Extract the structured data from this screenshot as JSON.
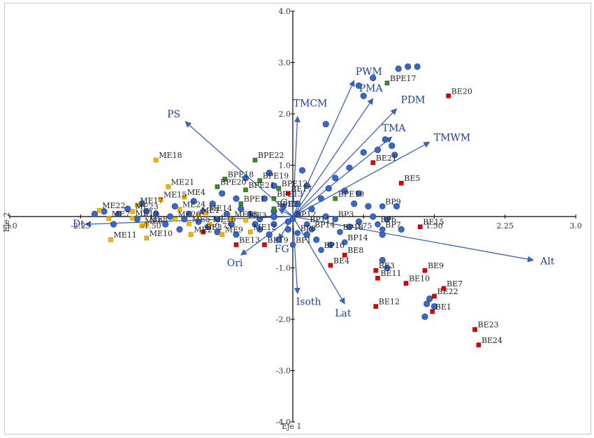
{
  "chart_data": {
    "type": "scatter",
    "title": "",
    "xlabel": "Eje 1",
    "ylabel": "Eje 2",
    "xlim": [
      -3.0,
      3.0
    ],
    "ylim": [
      -4.0,
      4.0
    ],
    "x_ticks": [
      -3.0,
      -2.25,
      -1.5,
      -0.75,
      0.75,
      1.5,
      2.25,
      3.0
    ],
    "x_tick_labels": [
      "-3.0",
      "-2.25",
      "-1.50",
      "-0.75",
      "0.75",
      "1.50",
      "2.25",
      "3.0"
    ],
    "y_ticks": [
      4.0,
      3.0,
      2.0,
      1.0,
      -1.0,
      -2.0,
      -3.0,
      -4.0
    ],
    "y_tick_labels": [
      "4.0",
      "3.0",
      "2.0",
      "1.0",
      "-1.0",
      "-2.0",
      "-3.0",
      "-4.0"
    ],
    "colors": {
      "ME": "#f5b400",
      "BPE": "#3d8a2a",
      "BE": "#e00000",
      "BP": "#ffffff",
      "unlabeled": "#3a66c4",
      "vectors": "#3b63b8"
    },
    "vectors": [
      {
        "name": "PWM",
        "x": 0.65,
        "y": 2.65
      },
      {
        "name": "PMA",
        "x": 0.85,
        "y": 2.3
      },
      {
        "name": "PDM",
        "x": 1.1,
        "y": 2.1
      },
      {
        "name": "TMA",
        "x": 1.05,
        "y": 1.55
      },
      {
        "name": "TMWM",
        "x": 1.45,
        "y": 1.45
      },
      {
        "name": "TMCM",
        "x": 0.05,
        "y": 1.95
      },
      {
        "name": "PS",
        "x": -1.14,
        "y": 1.85
      },
      {
        "name": "Dt",
        "x": -2.2,
        "y": -0.15
      },
      {
        "name": "Gm",
        "x": -0.15,
        "y": 0.15
      },
      {
        "name": "Ori",
        "x": -0.55,
        "y": -0.75
      },
      {
        "name": "FG",
        "x": -0.15,
        "y": -0.45
      },
      {
        "name": "Isoth",
        "x": 0.05,
        "y": -1.5
      },
      {
        "name": "Lat",
        "x": 0.55,
        "y": -1.7
      },
      {
        "name": "Alt",
        "x": 2.55,
        "y": -0.85
      }
    ],
    "groups": [
      {
        "name": "ME",
        "points": [
          {
            "label": "ME18",
            "x": -1.45,
            "y": 1.1
          },
          {
            "label": "ME21",
            "x": -1.32,
            "y": 0.58
          },
          {
            "label": "ME4",
            "x": -1.15,
            "y": 0.38
          },
          {
            "label": "ME15",
            "x": -1.4,
            "y": 0.33
          },
          {
            "label": "ME17",
            "x": -1.65,
            "y": 0.22
          },
          {
            "label": "ME24",
            "x": -1.2,
            "y": 0.14
          },
          {
            "label": "ME14",
            "x": -0.92,
            "y": 0.07
          },
          {
            "label": "ME22",
            "x": -2.05,
            "y": 0.12
          },
          {
            "label": "ME23",
            "x": -1.7,
            "y": 0.1
          },
          {
            "label": "ME7",
            "x": -1.95,
            "y": -0.04
          },
          {
            "label": "ME19",
            "x": -1.7,
            "y": -0.03
          },
          {
            "label": "ME6",
            "x": -1.6,
            "y": -0.18
          },
          {
            "label": "ME5",
            "x": -1.1,
            "y": -0.14
          },
          {
            "label": "ME11",
            "x": -1.93,
            "y": -0.45
          },
          {
            "label": "ME10",
            "x": -1.55,
            "y": -0.42
          },
          {
            "label": "ME2",
            "x": -1.08,
            "y": -0.35
          },
          {
            "label": "ME9",
            "x": -0.75,
            "y": -0.35
          },
          {
            "label": "ME13",
            "x": -0.65,
            "y": -0.05
          },
          {
            "label": "ME3",
            "x": -0.5,
            "y": -0.07
          },
          {
            "label": "ME12",
            "x": -0.45,
            "y": -0.3
          },
          {
            "label": "ME8",
            "x": -1.55,
            "y": -0.15
          },
          {
            "label": "ME20",
            "x": -1.25,
            "y": -0.05
          },
          {
            "label": "ME1",
            "x": -1.0,
            "y": 0.03
          },
          {
            "label": "ME16",
            "x": -0.88,
            "y": -0.15
          }
        ]
      },
      {
        "name": "BPE",
        "points": [
          {
            "label": "BPE22",
            "x": -0.4,
            "y": 1.1
          },
          {
            "label": "BPE18",
            "x": -0.72,
            "y": 0.73
          },
          {
            "label": "BPE19",
            "x": -0.35,
            "y": 0.7
          },
          {
            "label": "BPE12",
            "x": -0.15,
            "y": 0.55
          },
          {
            "label": "BPE20",
            "x": -0.8,
            "y": 0.58
          },
          {
            "label": "BPE21",
            "x": -0.5,
            "y": 0.52
          },
          {
            "label": "BPE13",
            "x": -0.2,
            "y": 0.35
          },
          {
            "label": "BPE17",
            "x": 1.0,
            "y": 2.6
          },
          {
            "label": "BPE10",
            "x": 0.45,
            "y": 0.35
          },
          {
            "label": "BPE2",
            "x": -0.2,
            "y": 0.15
          },
          {
            "label": "BPE1",
            "x": -0.55,
            "y": 0.25
          }
        ]
      },
      {
        "name": "BE",
        "points": [
          {
            "label": "BE20",
            "x": 1.65,
            "y": 2.35
          },
          {
            "label": "BE21",
            "x": 0.85,
            "y": 1.05
          },
          {
            "label": "BE5",
            "x": 1.15,
            "y": 0.65
          },
          {
            "label": "BE15",
            "x": 1.35,
            "y": -0.2
          },
          {
            "label": "BE17",
            "x": -0.05,
            "y": 0.45
          },
          {
            "label": "BE2",
            "x": -0.95,
            "y": -0.3
          },
          {
            "label": "BE13",
            "x": -0.6,
            "y": -0.55
          },
          {
            "label": "BE19",
            "x": -0.3,
            "y": -0.55
          },
          {
            "label": "BE4",
            "x": 0.4,
            "y": -0.95
          },
          {
            "label": "BE8",
            "x": 0.55,
            "y": -0.75
          },
          {
            "label": "BE3",
            "x": 0.88,
            "y": -1.05
          },
          {
            "label": "BE11",
            "x": 0.9,
            "y": -1.2
          },
          {
            "label": "BE12",
            "x": 0.88,
            "y": -1.75
          },
          {
            "label": "BE9",
            "x": 1.4,
            "y": -1.05
          },
          {
            "label": "BE10",
            "x": 1.2,
            "y": -1.3
          },
          {
            "label": "BE7",
            "x": 1.6,
            "y": -1.4
          },
          {
            "label": "BE22",
            "x": 1.5,
            "y": -1.55
          },
          {
            "label": "BE1",
            "x": 1.48,
            "y": -1.85
          },
          {
            "label": "BE23",
            "x": 1.93,
            "y": -2.2
          },
          {
            "label": "BE24",
            "x": 1.97,
            "y": -2.5
          }
        ]
      },
      {
        "name": "BP",
        "points": [
          {
            "label": "BP9",
            "x": 0.95,
            "y": 0.2
          },
          {
            "label": "BP6",
            "x": 0.9,
            "y": -0.15
          },
          {
            "label": "BP7",
            "x": 0.95,
            "y": -0.25
          },
          {
            "label": "BP14",
            "x": 0.2,
            "y": -0.25
          },
          {
            "label": "BP14",
            "x": 0.55,
            "y": -0.5
          },
          {
            "label": "BP16",
            "x": 0.3,
            "y": -0.65
          },
          {
            "label": "BP18",
            "x": 0.5,
            "y": -0.3
          },
          {
            "label": "BP11",
            "x": 0.15,
            "y": -0.15
          },
          {
            "label": "BP1",
            "x": 0.0,
            "y": -0.55
          },
          {
            "label": "BP8",
            "x": 0.05,
            "y": -0.32
          },
          {
            "label": "BP3",
            "x": 0.45,
            "y": -0.05
          },
          {
            "label": "BP12",
            "x": 0.0,
            "y": -0.05
          }
        ]
      },
      {
        "name": "unlabeled",
        "points": [
          {
            "x": 1.22,
            "y": 2.92
          },
          {
            "x": 1.32,
            "y": 2.92
          },
          {
            "x": 1.12,
            "y": 2.88
          },
          {
            "x": 0.85,
            "y": 2.7
          },
          {
            "x": 0.7,
            "y": 2.55
          },
          {
            "x": 0.75,
            "y": 2.35
          },
          {
            "x": 0.35,
            "y": 1.8
          },
          {
            "x": 0.75,
            "y": 1.25
          },
          {
            "x": 0.9,
            "y": 1.3
          },
          {
            "x": 0.98,
            "y": 1.5
          },
          {
            "x": 1.05,
            "y": 1.38
          },
          {
            "x": 1.08,
            "y": 1.2
          },
          {
            "x": 0.6,
            "y": 0.95
          },
          {
            "x": 0.45,
            "y": 0.75
          },
          {
            "x": 0.38,
            "y": 0.55
          },
          {
            "x": 0.55,
            "y": 0.5
          },
          {
            "x": 0.7,
            "y": 0.45
          },
          {
            "x": 0.1,
            "y": 0.9
          },
          {
            "x": 0.15,
            "y": 0.6
          },
          {
            "x": 0.3,
            "y": 0.35
          },
          {
            "x": 0.05,
            "y": 0.25
          },
          {
            "x": 0.2,
            "y": 0.15
          },
          {
            "x": 0.05,
            "y": 0.05
          },
          {
            "x": 0.35,
            "y": 0.0
          },
          {
            "x": 0.65,
            "y": 0.25
          },
          {
            "x": 0.8,
            "y": 0.2
          },
          {
            "x": 1.1,
            "y": 0.2
          },
          {
            "x": 0.7,
            "y": -0.1
          },
          {
            "x": 0.85,
            "y": 0.0
          },
          {
            "x": 1.0,
            "y": -0.05
          },
          {
            "x": 1.15,
            "y": -0.25
          },
          {
            "x": 0.95,
            "y": -0.35
          },
          {
            "x": 0.15,
            "y": -0.35
          },
          {
            "x": 0.25,
            "y": -0.45
          },
          {
            "x": 0.4,
            "y": -0.55
          },
          {
            "x": 0.6,
            "y": -0.2
          },
          {
            "x": 0.95,
            "y": -0.85
          },
          {
            "x": 1.0,
            "y": -1.0
          },
          {
            "x": 1.45,
            "y": -1.6
          },
          {
            "x": 1.42,
            "y": -1.7
          },
          {
            "x": 1.4,
            "y": -1.95
          },
          {
            "x": 1.5,
            "y": -1.75
          },
          {
            "x": -0.05,
            "y": -0.1
          },
          {
            "x": -0.05,
            "y": -0.25
          },
          {
            "x": -0.1,
            "y": 0.2
          },
          {
            "x": -0.2,
            "y": 0.1
          },
          {
            "x": -0.3,
            "y": 0.35
          },
          {
            "x": -0.35,
            "y": -0.05
          },
          {
            "x": -0.4,
            "y": -0.15
          },
          {
            "x": -0.45,
            "y": 0.05
          },
          {
            "x": -0.55,
            "y": 0.15
          },
          {
            "x": -0.6,
            "y": 0.35
          },
          {
            "x": -0.65,
            "y": -0.15
          },
          {
            "x": -0.7,
            "y": 0.05
          },
          {
            "x": -0.75,
            "y": 0.45
          },
          {
            "x": -0.8,
            "y": -0.05
          },
          {
            "x": -0.85,
            "y": 0.25
          },
          {
            "x": -0.9,
            "y": -0.2
          },
          {
            "x": -0.95,
            "y": 0.1
          },
          {
            "x": -1.0,
            "y": -0.1
          },
          {
            "x": -1.05,
            "y": 0.3
          },
          {
            "x": -1.1,
            "y": 0.05
          },
          {
            "x": -1.15,
            "y": -0.05
          },
          {
            "x": -1.2,
            "y": -0.25
          },
          {
            "x": -1.25,
            "y": 0.2
          },
          {
            "x": -1.3,
            "y": 0.0
          },
          {
            "x": -1.35,
            "y": -0.15
          },
          {
            "x": -1.45,
            "y": 0.05
          },
          {
            "x": -1.55,
            "y": 0.1
          },
          {
            "x": -1.6,
            "y": 0.25
          },
          {
            "x": -1.65,
            "y": -0.05
          },
          {
            "x": -1.75,
            "y": 0.15
          },
          {
            "x": -1.85,
            "y": 0.05
          },
          {
            "x": -1.9,
            "y": -0.15
          },
          {
            "x": -2.0,
            "y": 0.1
          },
          {
            "x": -2.1,
            "y": 0.05
          },
          {
            "x": -0.5,
            "y": 0.75
          },
          {
            "x": -0.25,
            "y": 0.85
          },
          {
            "x": -0.2,
            "y": 0.6
          },
          {
            "x": -0.15,
            "y": -0.45
          },
          {
            "x": -0.25,
            "y": -0.35
          },
          {
            "x": -0.35,
            "y": -0.25
          },
          {
            "x": -0.2,
            "y": -0.15
          },
          {
            "x": -0.6,
            "y": -0.35
          },
          {
            "x": -0.8,
            "y": -0.3
          },
          {
            "x": -0.2,
            "y": 0.0
          },
          {
            "x": -0.2,
            "y": 0.0
          },
          {
            "x": -0.2,
            "y": 0.0
          },
          {
            "x": -0.2,
            "y": 0.0
          },
          {
            "x": -0.2,
            "y": 0.0
          },
          {
            "x": -0.2,
            "y": 0.0
          },
          {
            "x": -0.2,
            "y": 0.0
          },
          {
            "x": -0.2,
            "y": 0.0
          },
          {
            "x": -0.2,
            "y": 0.0
          },
          {
            "x": -0.2,
            "y": 0.0
          },
          {
            "x": -0.2,
            "y": 0.0
          },
          {
            "x": -0.2,
            "y": 0.0
          },
          {
            "x": -0.2,
            "y": 0.0
          },
          {
            "x": -0.2,
            "y": 0.0
          },
          {
            "x": -0.2,
            "y": 0.0
          },
          {
            "x": -0.2,
            "y": 0.0
          },
          {
            "x": -0.2,
            "y": 0.0
          },
          {
            "x": -0.2,
            "y": 0.0
          },
          {
            "x": -0.2,
            "y": 0.0
          },
          {
            "x": -0.2,
            "y": 0.0
          },
          {
            "x": -0.2,
            "y": 0.0
          },
          {
            "x": -0.2,
            "y": 0.0
          },
          {
            "x": -0.2,
            "y": 0.0
          }
        ]
      }
    ]
  }
}
